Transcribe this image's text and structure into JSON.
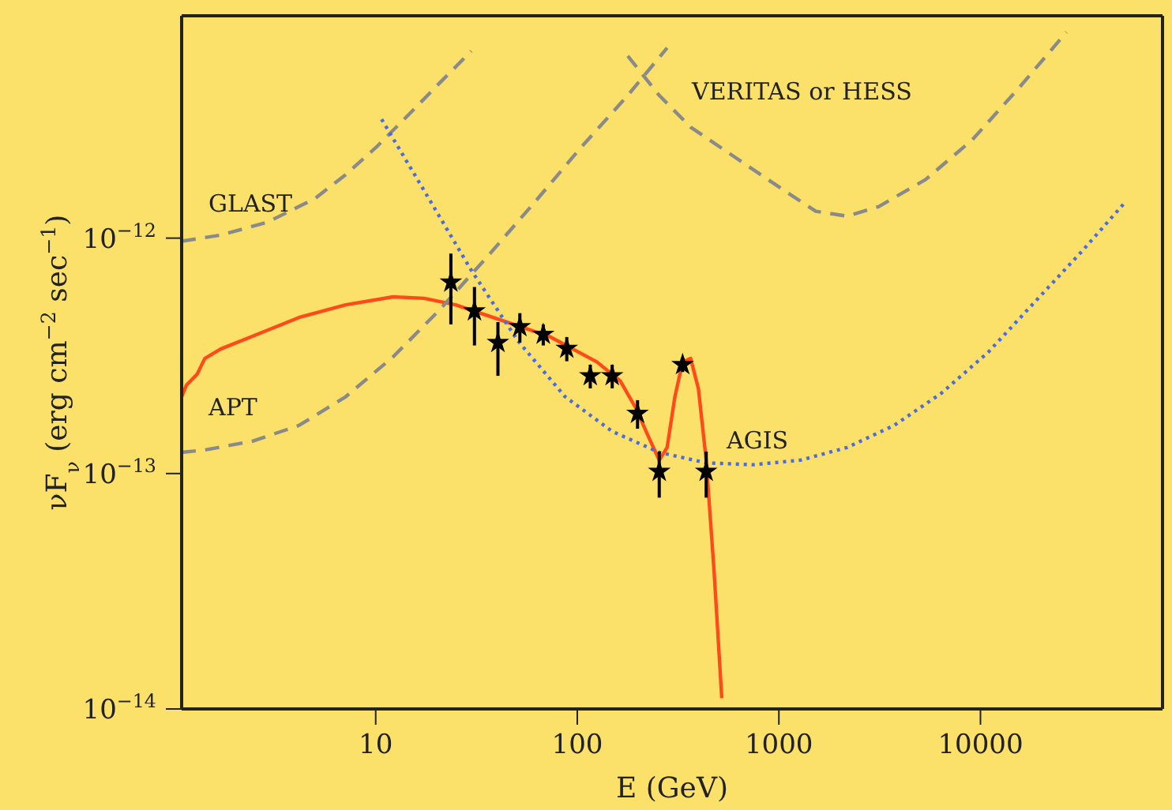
{
  "chart_data": {
    "type": "line",
    "xlabel": "E (GeV)",
    "ylabel": "νF$_{ν}$ (erg cm$^{−2}$ sec$^{−1}$)",
    "log": "xy",
    "grid": false,
    "legend": false,
    "xlim": [
      1.09,
      80000
    ],
    "ylim": [
      1e-14,
      8.8e-12
    ],
    "xticks": [
      10,
      100,
      1000,
      10000
    ],
    "yticks": [
      {
        "value": 1e-14,
        "label": "10$^{−14}$"
      },
      {
        "value": 1e-13,
        "label": "10$^{−13}$"
      },
      {
        "value": 1e-12,
        "label": "10$^{−12}$"
      }
    ],
    "series": [
      {
        "color": "#ff4a1a",
        "line_style": "solid",
        "x": [
          1.09,
          1.15,
          1.3,
          1.42,
          1.7,
          2.43,
          4.16,
          7.1,
          12.2,
          17.4,
          24.9,
          42.6,
          72.8,
          125,
          163,
          195,
          225,
          255,
          279,
          305,
          333,
          365,
          399,
          436,
          477,
          521
        ],
        "values": [
          2.12e-13,
          2.37e-13,
          2.64e-13,
          3.08e-13,
          3.38e-13,
          3.82e-13,
          4.6e-13,
          5.21e-13,
          5.63e-13,
          5.55e-13,
          5.21e-13,
          4.46e-13,
          3.82e-13,
          2.98e-13,
          2.48e-13,
          1.9e-13,
          1.44e-13,
          1.14e-13,
          1.29e-13,
          2.12e-13,
          2.98e-13,
          3.08e-13,
          2.29e-13,
          1.14e-13,
          3.86e-14,
          1.11e-14
        ]
      },
      {
        "name": "GLAST",
        "color": "#8a8a8a",
        "line_style": "dashed",
        "x": [
          1.09,
          1.7,
          2.91,
          4.98,
          7.1,
          10.2,
          14.6,
          20.8,
          29.8
        ],
        "values": [
          9.7e-13,
          1.03e-12,
          1.17e-12,
          1.47e-12,
          1.86e-12,
          2.46e-12,
          3.35e-12,
          4.57e-12,
          6.23e-12
        ]
      },
      {
        "name": "APT",
        "color": "#8a8a8a",
        "line_style": "dashed",
        "x": [
          1.09,
          1.42,
          2.43,
          4.16,
          7.1,
          12.2,
          20.8,
          35.6,
          61,
          104,
          178,
          279
        ],
        "values": [
          1.23e-13,
          1.26e-13,
          1.37e-13,
          1.6e-13,
          2.12e-13,
          3.13e-13,
          4.97e-13,
          8.3e-13,
          1.41e-12,
          2.42e-12,
          4.04e-12,
          6.43e-12
        ]
      },
      {
        "name": "VERITAS or HESS",
        "color": "#8a8a8a",
        "line_style": "dashed",
        "x": [
          178,
          255,
          365,
          623,
          1067,
          1525,
          2180,
          3120,
          5330,
          9120,
          15600,
          26700
        ],
        "values": [
          5.94e-12,
          4.04e-12,
          2.96e-12,
          2.17e-12,
          1.59e-12,
          1.3e-12,
          1.24e-12,
          1.36e-12,
          1.77e-12,
          2.62e-12,
          4.37e-12,
          7.5e-12
        ]
      },
      {
        "name": "AGIS",
        "color": "#4d6be0",
        "line_style": "dotted",
        "x": [
          10.7,
          17.4,
          29.8,
          50.9,
          87,
          149,
          255,
          436,
          746,
          1280,
          2180,
          3730,
          6380,
          10900,
          18700,
          31900,
          51800
        ],
        "values": [
          3.2e-12,
          1.59e-12,
          7.3e-13,
          3.65e-13,
          2.12e-13,
          1.51e-13,
          1.23e-13,
          1.11e-13,
          1.09e-13,
          1.14e-13,
          1.29e-13,
          1.6e-13,
          2.19e-13,
          3.27e-13,
          5.38e-13,
          8.8e-13,
          1.41e-12
        ]
      },
      {
        "type": "scatter",
        "color": "#000000",
        "marker": "star",
        "x": [
          23.6,
          30.9,
          40.4,
          51.9,
          67.8,
          88.7,
          116,
          149,
          199,
          255,
          333,
          436
        ],
        "values": [
          6.5e-13,
          4.9e-13,
          3.6e-13,
          4.2e-13,
          3.9e-13,
          3.4e-13,
          2.6e-13,
          2.6e-13,
          1.8e-13,
          1.02e-13,
          2.9e-13,
          1.02e-13
        ],
        "errors": [
          [
            4.3e-13,
            8.6e-13
          ],
          [
            3.5e-13,
            6.2e-13
          ],
          [
            2.6e-13,
            4.4e-13
          ],
          [
            3.6e-13,
            4.8e-13
          ],
          [
            3.5e-13,
            4.3e-13
          ],
          [
            3e-13,
            3.8e-13
          ],
          [
            2.3e-13,
            2.9e-13
          ],
          [
            2.3e-13,
            2.9e-13
          ],
          [
            1.55e-13,
            2.05e-13
          ],
          [
            7.9e-14,
            1.24e-13
          ],
          [
            2.7e-13,
            3.1e-13
          ],
          [
            7.9e-14,
            1.24e-13
          ]
        ]
      }
    ]
  }
}
